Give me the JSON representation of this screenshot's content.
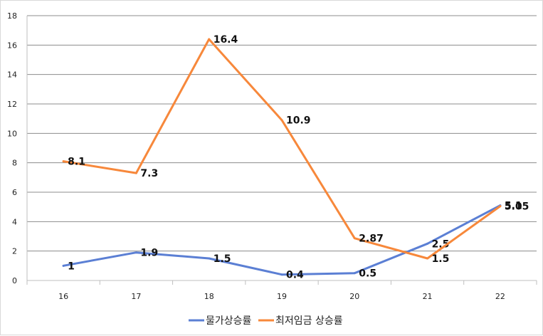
{
  "chart_data": {
    "type": "line",
    "categories": [
      "16",
      "17",
      "18",
      "19",
      "20",
      "21",
      "22"
    ],
    "ylim": [
      0,
      18
    ],
    "yticks": [
      0,
      2,
      4,
      6,
      8,
      10,
      12,
      14,
      16,
      18
    ],
    "grid": true,
    "legend_position": "bottom",
    "series": [
      {
        "name": "물가상승률",
        "color": "#5b7fd4",
        "values": [
          1,
          1.9,
          1.5,
          0.4,
          0.5,
          2.5,
          5.1
        ],
        "labels": [
          "1",
          "1.9",
          "1.5",
          "0.4",
          "0.5",
          "2.5",
          "5.1"
        ]
      },
      {
        "name": "최저임금 상승률",
        "color": "#f7883b",
        "values": [
          8.1,
          7.3,
          16.4,
          10.9,
          2.87,
          1.5,
          5.05
        ],
        "labels": [
          "8.1",
          "7.3",
          "16.4",
          "10.9",
          "2.87",
          "1.5",
          "5.05"
        ]
      }
    ]
  }
}
